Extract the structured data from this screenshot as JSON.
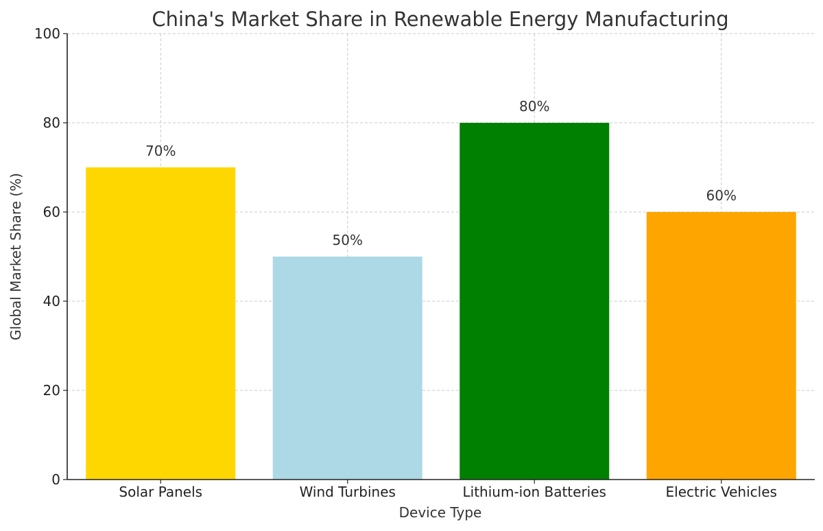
{
  "chart_data": {
    "type": "bar",
    "title": "China's Market Share in Renewable Energy Manufacturing",
    "xlabel": "Device Type",
    "ylabel": "Global Market Share (%)",
    "categories": [
      "Solar Panels",
      "Wind Turbines",
      "Lithium-ion Batteries",
      "Electric Vehicles"
    ],
    "values": [
      70,
      50,
      80,
      60
    ],
    "value_labels": [
      "70%",
      "50%",
      "80%",
      "60%"
    ],
    "colors": [
      "#FFD700",
      "#ADD8E6",
      "#008000",
      "#FFA500"
    ],
    "ylim": [
      0,
      100
    ],
    "yticks": [
      0,
      20,
      40,
      60,
      80,
      100
    ],
    "grid": true
  }
}
